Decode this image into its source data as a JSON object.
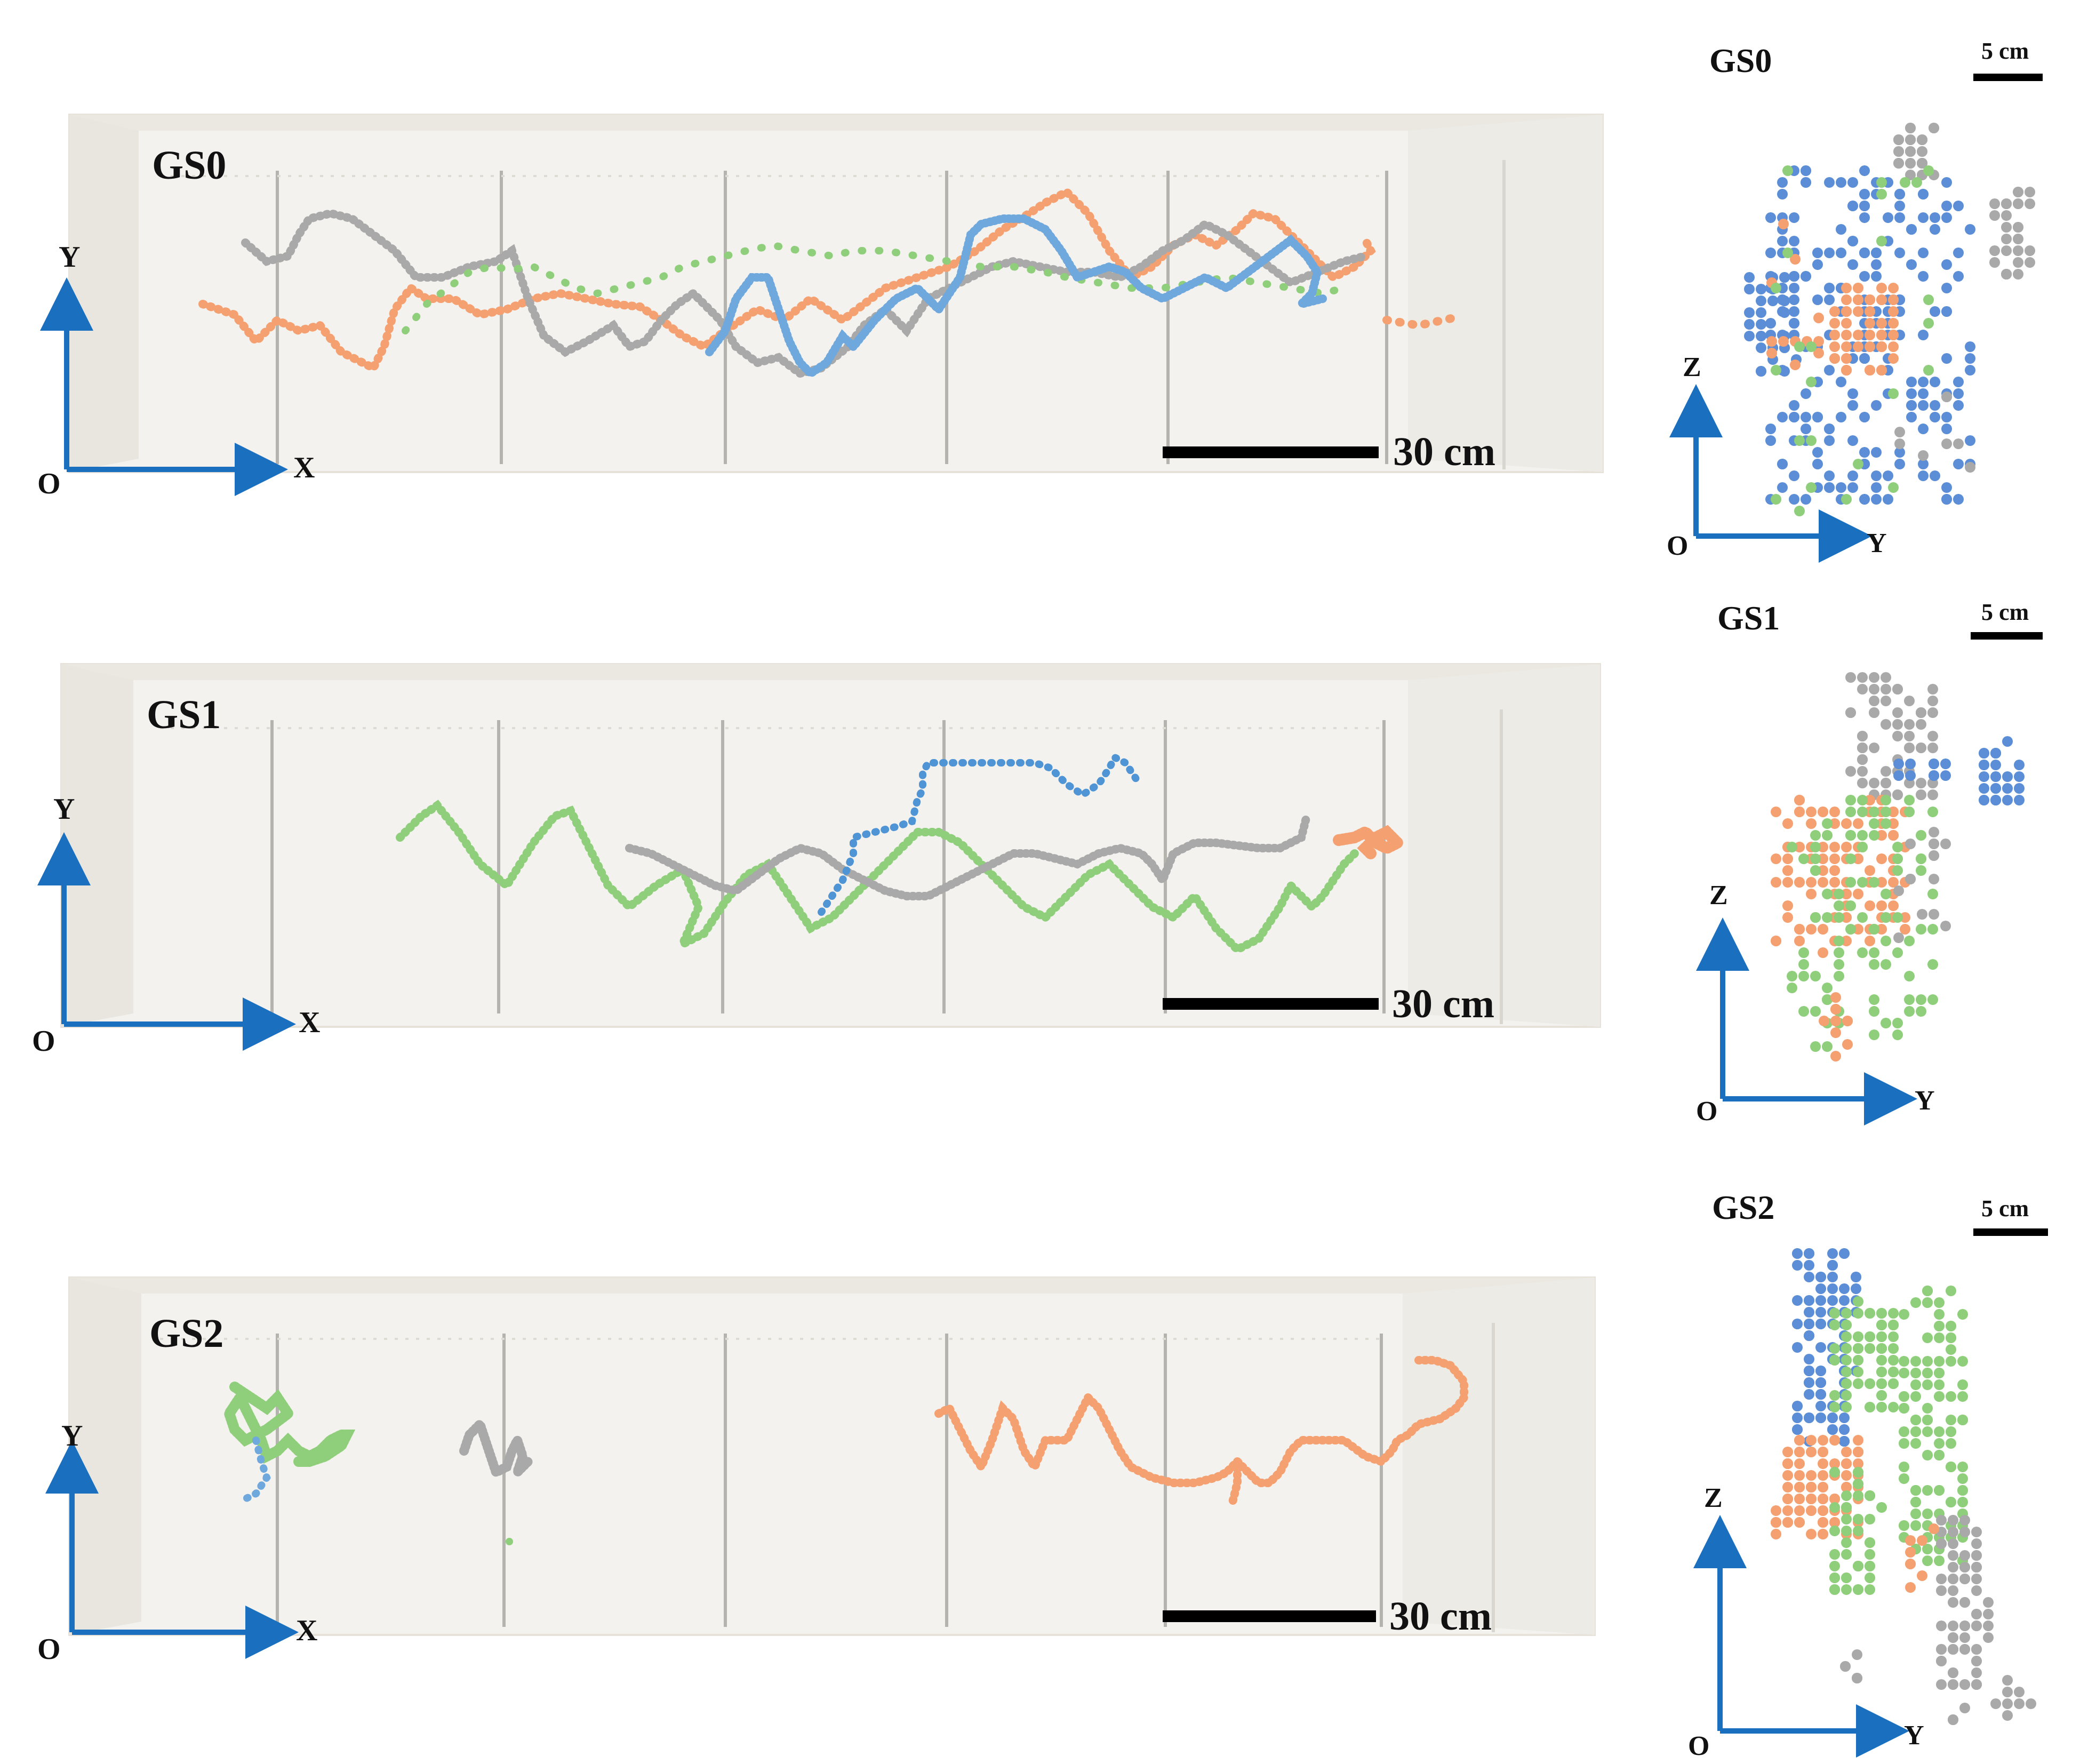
{
  "colors": {
    "blue_track": "#6fa8dc",
    "blue_side": "#5b8ed6",
    "orange": "#f4a070",
    "gray": "#a9a9a9",
    "green": "#8fce7a",
    "axis_blue": "#1a6fbf",
    "scale_bar": "#000000"
  },
  "panels": [
    {
      "id": "GS0",
      "top_view": {
        "label": "GS0",
        "scale_text": "30 cm",
        "axis_x": "X",
        "axis_y": "Y",
        "origin": "O"
      },
      "side_view": {
        "label": "GS0",
        "scale_text": "5 cm",
        "axis_y": "Y",
        "axis_z": "Z",
        "origin": "O"
      }
    },
    {
      "id": "GS1",
      "top_view": {
        "label": "GS1",
        "scale_text": "30 cm",
        "axis_x": "X",
        "axis_y": "Y",
        "origin": "O"
      },
      "side_view": {
        "label": "GS1",
        "scale_text": "5 cm",
        "axis_y": "Y",
        "axis_z": "Z",
        "origin": "O"
      }
    },
    {
      "id": "GS2",
      "top_view": {
        "label": "GS2",
        "scale_text": "30 cm",
        "axis_x": "X",
        "axis_y": "Y",
        "origin": "O"
      },
      "side_view": {
        "label": "GS2",
        "scale_text": "5 cm",
        "axis_y": "Y",
        "axis_z": "Z",
        "origin": "O"
      }
    }
  ]
}
